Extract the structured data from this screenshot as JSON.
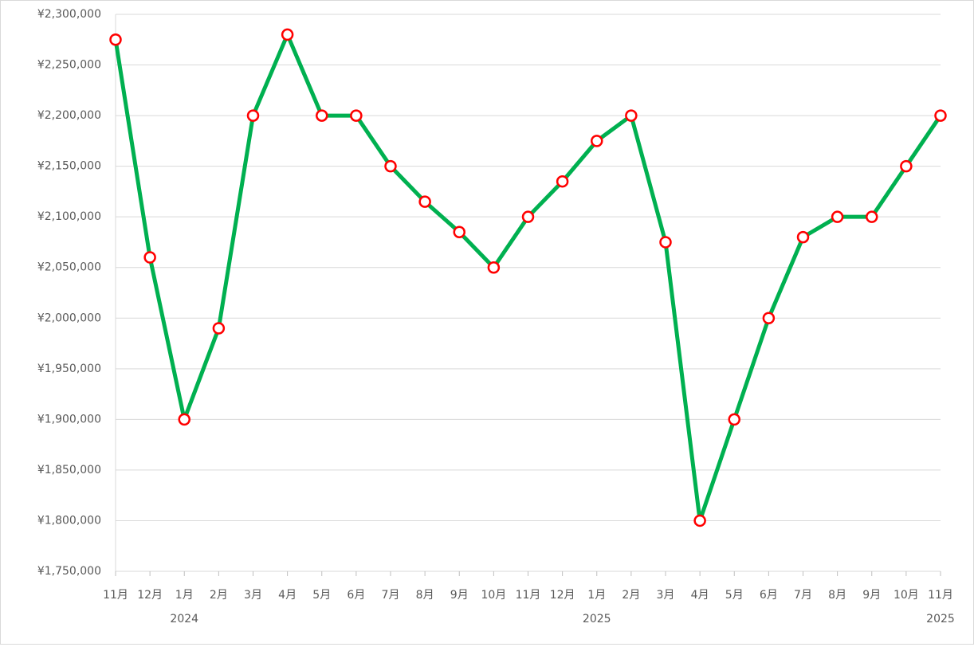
{
  "chart_data": {
    "type": "line",
    "categories": [
      "11月",
      "12月",
      "1月",
      "2月",
      "3月",
      "4月",
      "5月",
      "6月",
      "7月",
      "8月",
      "9月",
      "10月",
      "11月",
      "12月",
      "1月",
      "2月",
      "3月",
      "4月",
      "5月",
      "6月",
      "7月",
      "8月",
      "9月",
      "10月",
      "11月"
    ],
    "category_groups": [
      null,
      null,
      "2024",
      null,
      null,
      null,
      null,
      null,
      null,
      null,
      null,
      null,
      null,
      null,
      "2025",
      null,
      null,
      null,
      null,
      null,
      null,
      null,
      null,
      null,
      "2025"
    ],
    "series": [
      {
        "color": "#00b050",
        "marker_color": "#ff0000",
        "values": [
          2275000,
          2060000,
          1900000,
          1990000,
          2200000,
          2280000,
          2200000,
          2200000,
          2150000,
          2115000,
          2085000,
          2050000,
          2100000,
          2135000,
          2175000,
          2200000,
          2075000,
          1800000,
          1900000,
          2000000,
          2080000,
          2100000,
          2100000,
          2150000,
          2200000
        ]
      }
    ],
    "ylim": [
      1750000,
      2300000
    ],
    "yticks": [
      {
        "value": 1750000,
        "label": "¥1,750,000"
      },
      {
        "value": 1800000,
        "label": "¥1,800,000"
      },
      {
        "value": 1850000,
        "label": "¥1,850,000"
      },
      {
        "value": 1900000,
        "label": "¥1,900,000"
      },
      {
        "value": 1950000,
        "label": "¥1,950,000"
      },
      {
        "value": 2000000,
        "label": "¥2,000,000"
      },
      {
        "value": 2050000,
        "label": "¥2,050,000"
      },
      {
        "value": 2100000,
        "label": "¥2,100,000"
      },
      {
        "value": 2150000,
        "label": "¥2,150,000"
      },
      {
        "value": 2200000,
        "label": "¥2,200,000"
      },
      {
        "value": 2250000,
        "label": "¥2,250,000"
      },
      {
        "value": 2300000,
        "label": "¥2,300,000"
      }
    ],
    "grid": true
  }
}
